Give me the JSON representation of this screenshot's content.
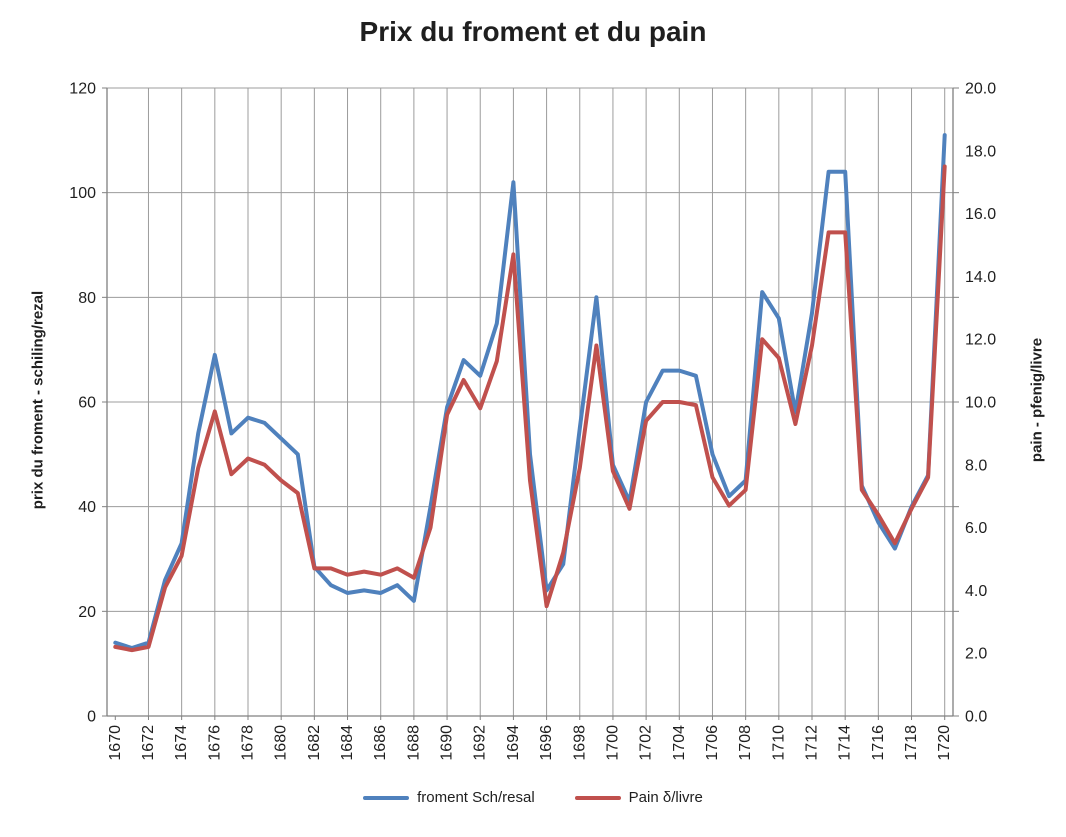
{
  "chart_data": {
    "type": "line",
    "title": "Prix du froment et du pain",
    "years": [
      1670,
      1671,
      1672,
      1673,
      1674,
      1675,
      1676,
      1677,
      1678,
      1679,
      1680,
      1681,
      1682,
      1683,
      1684,
      1685,
      1686,
      1687,
      1688,
      1689,
      1690,
      1691,
      1692,
      1693,
      1694,
      1695,
      1696,
      1697,
      1698,
      1699,
      1700,
      1701,
      1702,
      1703,
      1704,
      1705,
      1706,
      1707,
      1708,
      1709,
      1710,
      1711,
      1712,
      1713,
      1714,
      1715,
      1716,
      1717,
      1718,
      1719,
      1720
    ],
    "series": [
      {
        "name": "froment Sch/resal",
        "axis": "left",
        "color": "#4F81BD",
        "values": [
          14,
          13,
          14,
          26,
          33,
          54,
          69,
          54,
          57,
          56,
          53,
          50,
          28.5,
          25,
          23.5,
          24,
          23.5,
          25,
          22,
          40,
          59,
          68,
          65,
          75,
          102,
          50,
          24,
          29,
          55,
          80,
          48,
          41,
          60,
          66,
          66,
          65,
          50,
          42,
          45,
          81,
          76,
          58,
          77,
          104,
          104,
          44,
          37,
          32,
          40,
          46,
          111
        ]
      },
      {
        "name": "Pain δ/livre",
        "axis": "right",
        "color": "#C0504D",
        "values": [
          2.2,
          2.1,
          2.2,
          4.1,
          5.1,
          7.9,
          9.7,
          7.7,
          8.2,
          8.0,
          7.5,
          7.1,
          4.7,
          4.7,
          4.5,
          4.6,
          4.5,
          4.7,
          4.4,
          6.0,
          9.6,
          10.7,
          9.8,
          11.3,
          14.7,
          7.5,
          3.5,
          5.2,
          7.9,
          11.8,
          7.8,
          6.6,
          9.4,
          10.0,
          10.0,
          9.9,
          7.6,
          6.7,
          7.2,
          12.0,
          11.4,
          9.3,
          11.8,
          15.4,
          15.4,
          7.2,
          6.4,
          5.5,
          6.6,
          7.6,
          17.5
        ]
      }
    ],
    "left_axis": {
      "title": "prix du froment - schiling/rezal",
      "min": 0,
      "max": 120,
      "step": 20
    },
    "right_axis": {
      "title": "pain - pfenig/livre",
      "min": 0,
      "max": 20,
      "step": 2,
      "decimals": 1
    },
    "x_axis": {
      "tick_years": [
        1670,
        1672,
        1674,
        1676,
        1678,
        1680,
        1682,
        1684,
        1686,
        1688,
        1690,
        1692,
        1694,
        1696,
        1698,
        1700,
        1702,
        1704,
        1706,
        1708,
        1710,
        1712,
        1714,
        1716,
        1718,
        1720
      ],
      "label_rotation": -90
    },
    "grid": {
      "horizontal": true,
      "vertical": true
    },
    "legend_position": "bottom",
    "colors": {
      "gridline": "#9C9C9C",
      "axis_line": "#808080",
      "text": "#1F1F1F",
      "background": "#FFFFFF"
    }
  }
}
